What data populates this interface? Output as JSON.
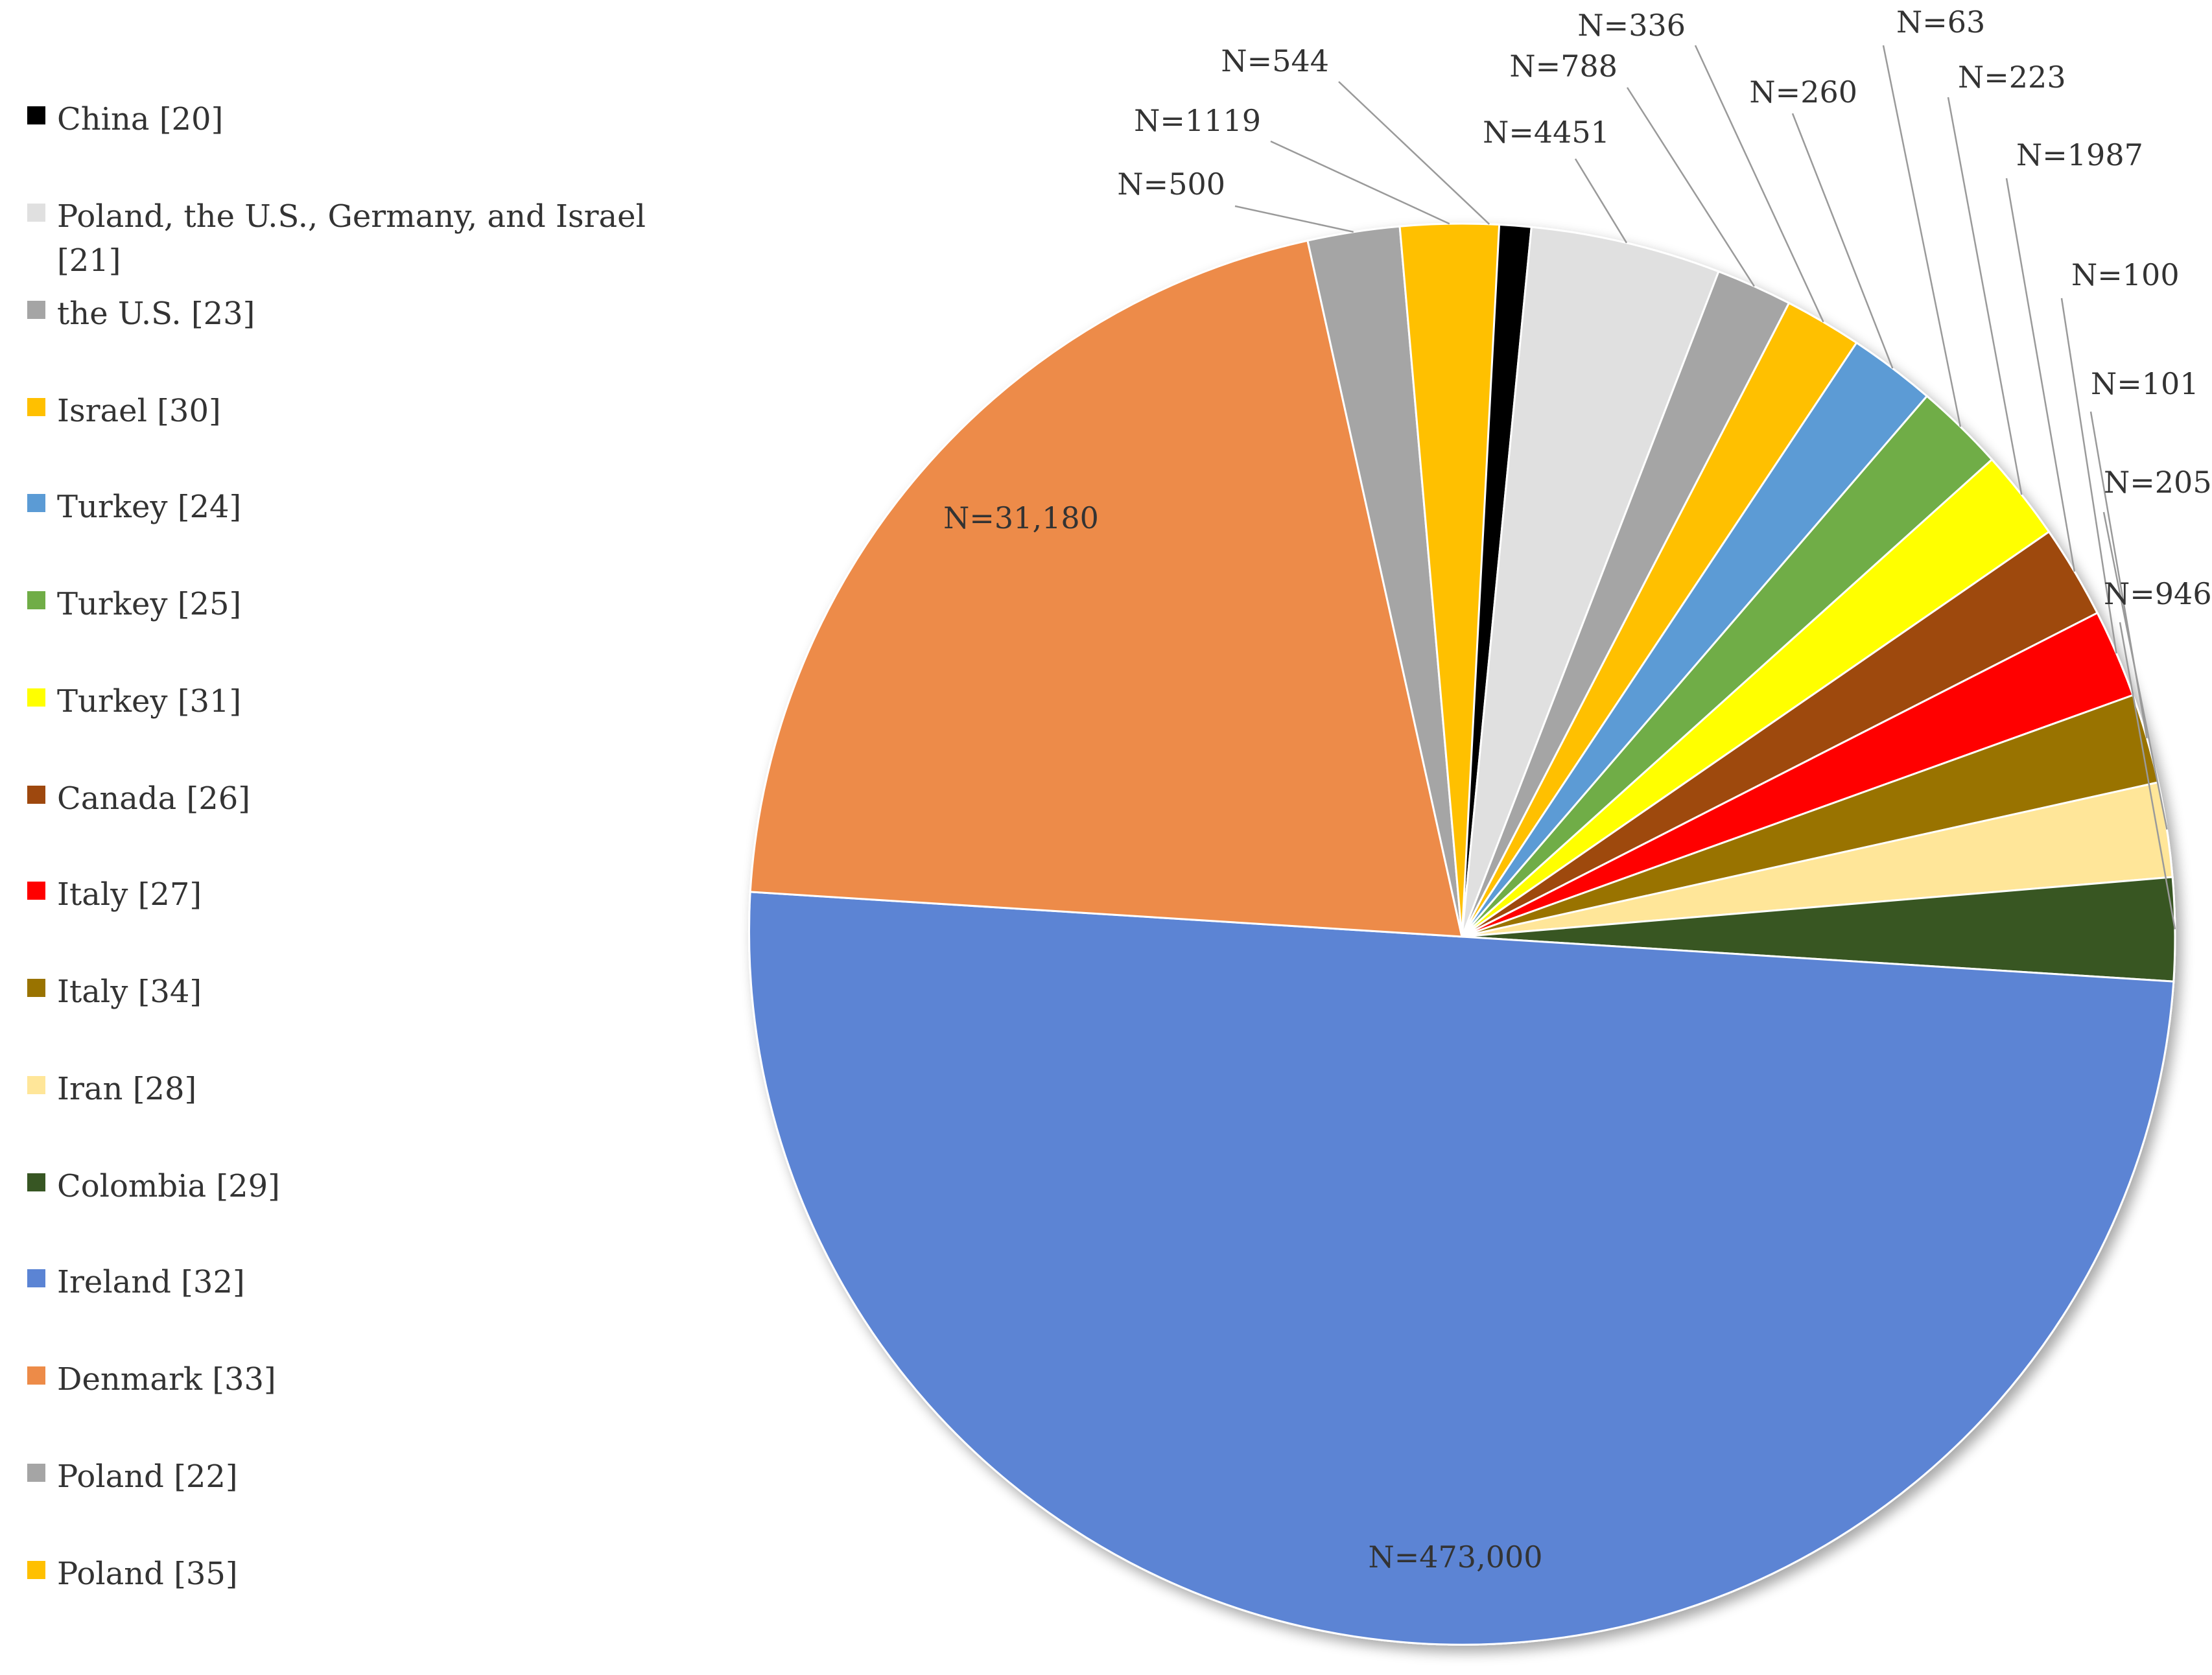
{
  "chart_data": {
    "type": "pie",
    "title": "",
    "note": "Slice angles estimated from the figure; the figure does not draw slices proportional to N.",
    "legend_position": "left",
    "slices": [
      {
        "legend": "China [20]",
        "label": "N=544",
        "color": "#000000",
        "span_deg": 6.8
      },
      {
        "legend": "Poland, the U.S., Germany, and Israel [21]",
        "label": "N=4451",
        "color": "#e0e0e0",
        "span_deg": 15.5
      },
      {
        "legend": "the U.S. [23]",
        "label": "N=788",
        "color": "#a5a5a5",
        "span_deg": 6.2
      },
      {
        "legend": "Israel [30]",
        "label": "N=336",
        "color": "#ffc000",
        "span_deg": 6.3
      },
      {
        "legend": "Turkey [24]",
        "label": "N=260",
        "color": "#5b9bd5",
        "span_deg": 7.1
      },
      {
        "legend": "Turkey [25]",
        "label": "N=63",
        "color": "#70ad47",
        "span_deg": 7.3
      },
      {
        "legend": "Turkey [31]",
        "label": "N=223",
        "color": "#ffff00",
        "span_deg": 7.4
      },
      {
        "legend": "Canada [26]",
        "label": "N=1987",
        "color": "#9e480e",
        "span_deg": 7.6
      },
      {
        "legend": "Italy [27]",
        "label": "N=100",
        "color": "#ff0000",
        "span_deg": 7.2
      },
      {
        "legend": "Italy [34]",
        "label": "N=101",
        "color": "#997300",
        "span_deg": 7.3
      },
      {
        "legend": "Iran [28]",
        "label": "N=205",
        "color": "#ffe699",
        "span_deg": 7.7
      },
      {
        "legend": "Colombia [29]",
        "label": "N=946",
        "color": "#375623",
        "span_deg": 8.4
      },
      {
        "legend": "Ireland [32]",
        "label": "N=473,000",
        "color": "#5b84d4",
        "span_deg": 180.0
      },
      {
        "legend": "Denmark [33]",
        "label": "N=31,180",
        "color": "#ed8b48",
        "span_deg": 73.9
      },
      {
        "legend": "Poland [22]",
        "label": "N=500",
        "color": "#a5a5a5",
        "span_deg": 7.5
      },
      {
        "legend": "Poland [35]",
        "label": "N=1119",
        "color": "#ffc000",
        "span_deg": 8.0
      }
    ]
  }
}
